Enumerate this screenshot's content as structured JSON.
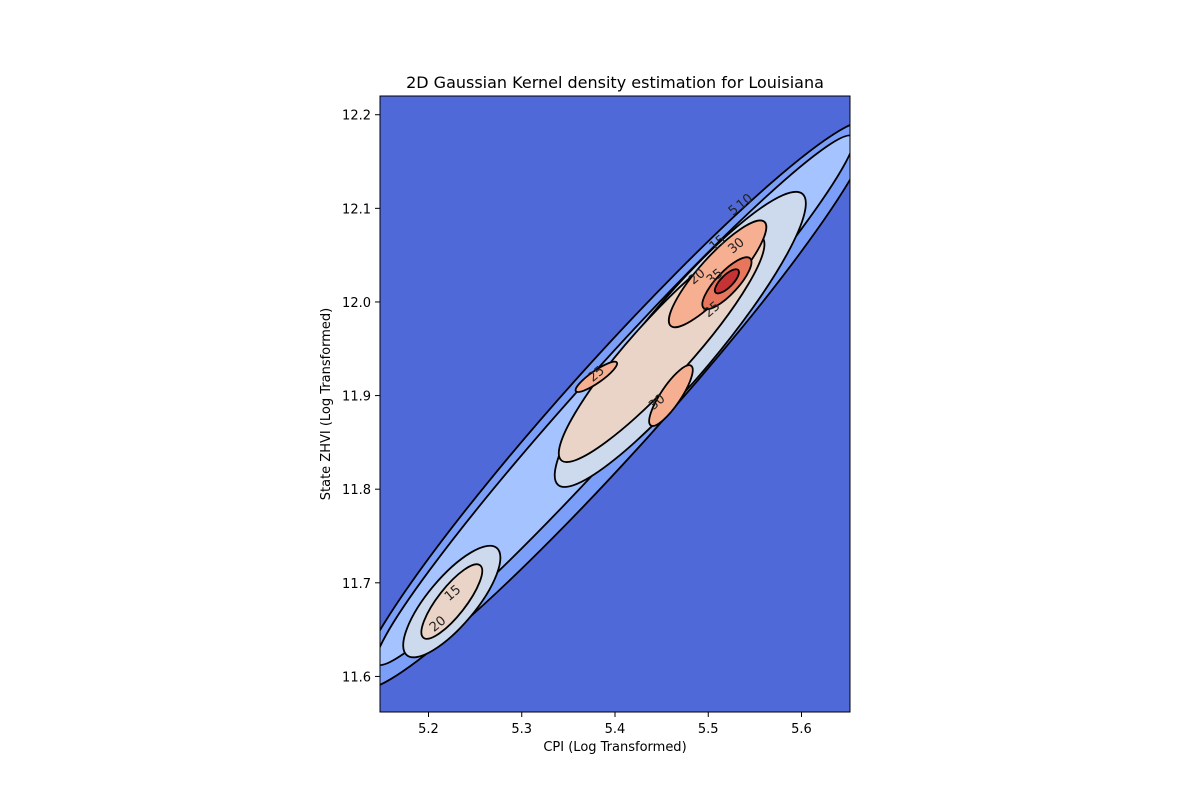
{
  "chart_data": {
    "type": "contour",
    "title": "2D Gaussian Kernel density estimation for Louisiana",
    "xlabel": "CPI (Log Transformed)",
    "ylabel": "State ZHVI (Log Transformed)",
    "xlim": [
      5.148,
      5.652
    ],
    "ylim": [
      11.562,
      12.22
    ],
    "x_ticks": [
      5.2,
      5.3,
      5.4,
      5.5,
      5.6
    ],
    "x_tick_labels": [
      "5.2",
      "5.3",
      "5.4",
      "5.5",
      "5.6"
    ],
    "y_ticks": [
      11.6,
      11.7,
      11.8,
      11.9,
      12.0,
      12.1,
      12.2
    ],
    "y_tick_labels": [
      "11.6",
      "11.7",
      "11.8",
      "11.9",
      "12.0",
      "12.1",
      "12.2"
    ],
    "grid": false,
    "colormap": "coolwarm",
    "level_colors": [
      "#4f69d9",
      "#7b9ff9",
      "#a5c3fe",
      "#cdd9ec",
      "#ead4c8",
      "#f7af91",
      "#e8765c",
      "#c53334"
    ],
    "density_peaks": [
      {
        "x": 5.52,
        "y": 12.02
      },
      {
        "x": 5.46,
        "y": 11.9
      },
      {
        "x": 5.38,
        "y": 11.92
      },
      {
        "x": 5.225,
        "y": 11.68
      }
    ],
    "contour_labels": [
      {
        "text": "5",
        "x": 5.527,
        "y": 12.098
      },
      {
        "text": "10",
        "x": 5.539,
        "y": 12.107
      },
      {
        "text": "15",
        "x": 5.51,
        "y": 12.063
      },
      {
        "text": "30",
        "x": 5.53,
        "y": 12.06
      },
      {
        "text": "20",
        "x": 5.488,
        "y": 12.027
      },
      {
        "text": "35",
        "x": 5.507,
        "y": 12.027
      },
      {
        "text": "25",
        "x": 5.504,
        "y": 11.992
      },
      {
        "text": "25",
        "x": 5.38,
        "y": 11.923
      },
      {
        "text": "30",
        "x": 5.445,
        "y": 11.893
      },
      {
        "text": "15",
        "x": 5.226,
        "y": 11.689
      },
      {
        "text": "20",
        "x": 5.21,
        "y": 11.656
      }
    ]
  }
}
